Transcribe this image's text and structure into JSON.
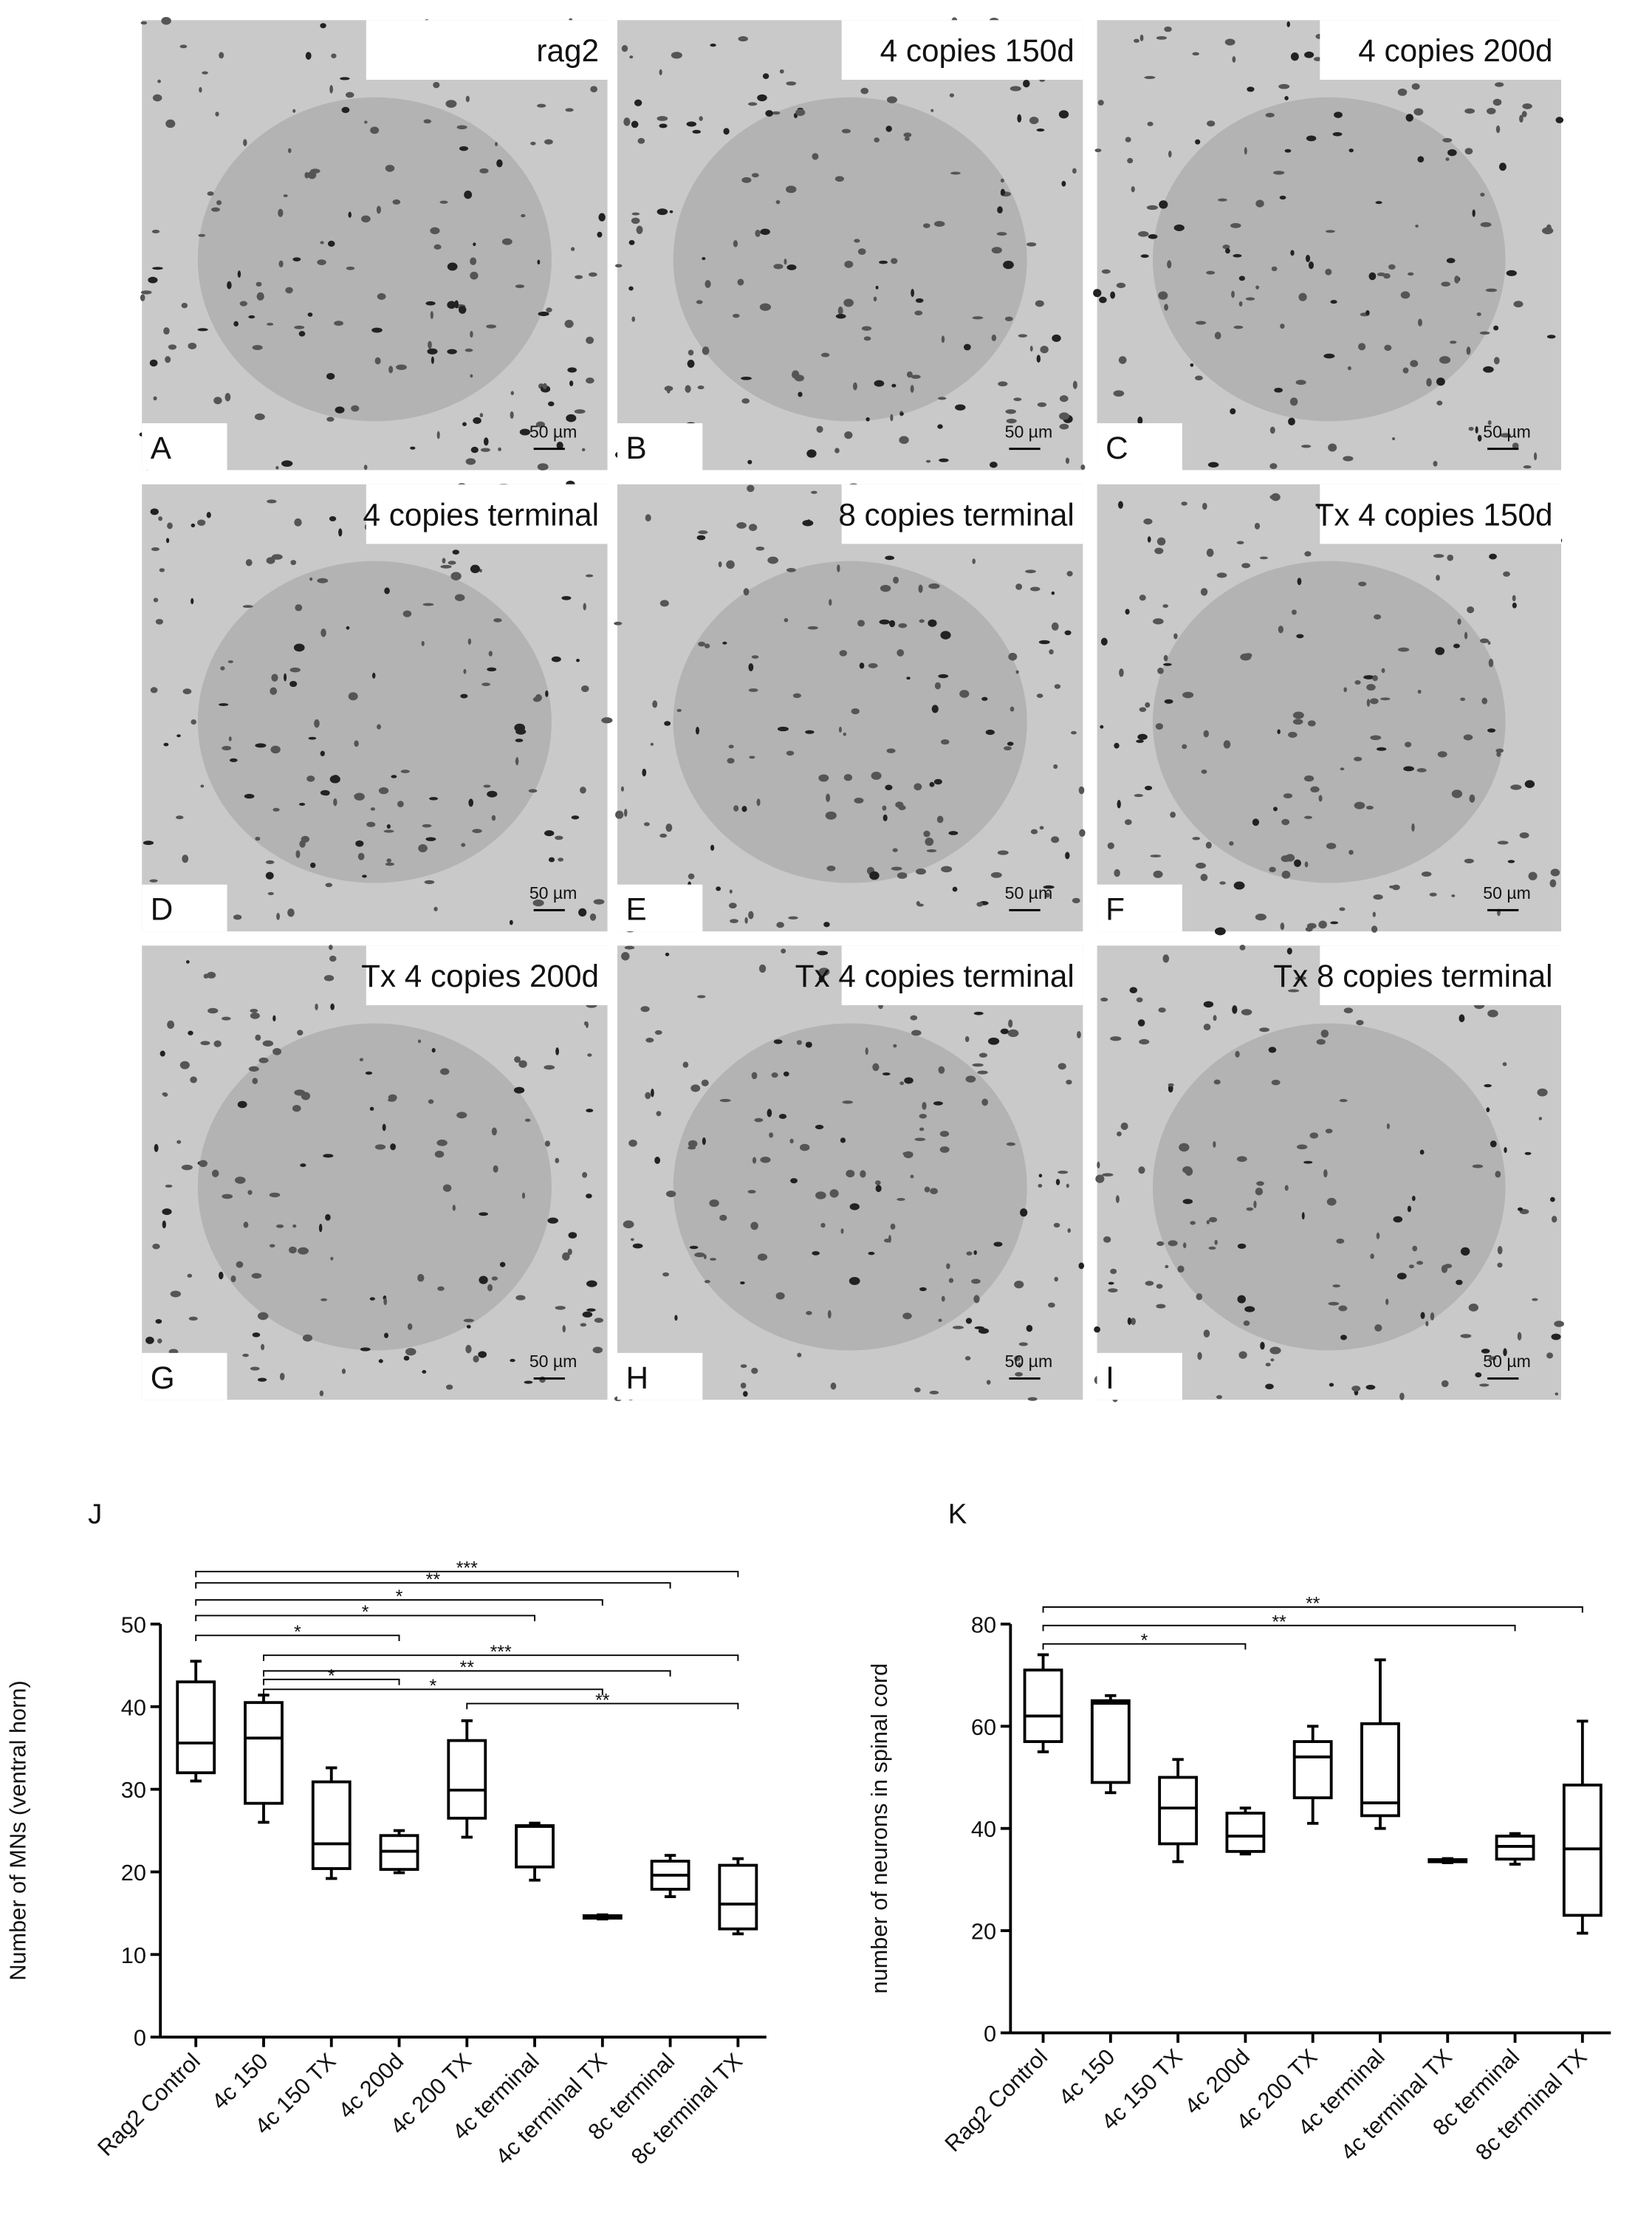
{
  "micrographs": [
    {
      "label": "rag2",
      "letter": "A",
      "scale": "50 µm"
    },
    {
      "label": "4 copies 150d",
      "letter": "B",
      "scale": "50 µm"
    },
    {
      "label": "4 copies 200d",
      "letter": "C",
      "scale": "50 µm"
    },
    {
      "label": "4 copies terminal",
      "letter": "D",
      "scale": "50 µm"
    },
    {
      "label": "8 copies terminal",
      "letter": "E",
      "scale": "50 µm"
    },
    {
      "label": "Tx 4 copies 150d",
      "letter": "F",
      "scale": "50 µm"
    },
    {
      "label": "Tx 4 copies 200d",
      "letter": "G",
      "scale": "50 µm"
    },
    {
      "label": "Tx 4 copies terminal",
      "letter": "H",
      "scale": "50 µm"
    },
    {
      "label": "Tx 8 copies terminal",
      "letter": "I",
      "scale": "50 µm"
    }
  ],
  "chart_data": [
    {
      "type": "box",
      "panel": "J",
      "y_label": "Number of MNs (ventral horn)",
      "categories": [
        "Rag2 Control",
        "4c 150",
        "4c 150 TX",
        "4c 200d",
        "4c 200 TX",
        "4c terminal",
        "4c terminal TX",
        "8c terminal",
        "8c terminal TX"
      ],
      "boxes": [
        {
          "min": 31,
          "q1": 32,
          "median": 35.6,
          "q3": 43,
          "max": 45.5
        },
        {
          "min": 26,
          "q1": 28.3,
          "median": 36.2,
          "q3": 40.5,
          "max": 41.4
        },
        {
          "min": 19.2,
          "q1": 20.4,
          "median": 23.4,
          "q3": 30.9,
          "max": 32.6
        },
        {
          "min": 19.9,
          "q1": 20.3,
          "median": 22.5,
          "q3": 24.4,
          "max": 25
        },
        {
          "min": 24.2,
          "q1": 26.5,
          "median": 29.9,
          "q3": 35.9,
          "max": 38.3
        },
        {
          "min": 19,
          "q1": 20.6,
          "median": 25.5,
          "q3": 25.6,
          "max": 25.9
        },
        {
          "min": 14.3,
          "q1": 14.4,
          "median": 14.5,
          "q3": 14.7,
          "max": 14.8
        },
        {
          "min": 17,
          "q1": 17.9,
          "median": 19.6,
          "q3": 21.3,
          "max": 22
        },
        {
          "min": 12.5,
          "q1": 13.1,
          "median": 16.1,
          "q3": 20.8,
          "max": 21.6
        }
      ],
      "ylim": [
        0,
        50
      ],
      "yticks": [
        0,
        10,
        20,
        30,
        40,
        50
      ],
      "color": "#000000",
      "comparisons": [
        {
          "from": "Rag2 Control",
          "to": "8c terminal TX",
          "label": "***"
        },
        {
          "from": "Rag2 Control",
          "to": "8c terminal",
          "label": "**"
        },
        {
          "from": "Rag2 Control",
          "to": "4c terminal TX",
          "label": "*"
        },
        {
          "from": "Rag2 Control",
          "to": "4c terminal",
          "label": "*"
        },
        {
          "from": "Rag2 Control",
          "to": "4c 200d",
          "label": "*"
        },
        {
          "from": "4c 150",
          "to": "8c terminal TX",
          "label": "***"
        },
        {
          "from": "4c 150",
          "to": "8c terminal",
          "label": "**"
        },
        {
          "from": "4c 150",
          "to": "4c 200d",
          "label": "*"
        },
        {
          "from": "4c 150",
          "to": "4c terminal TX",
          "label": "*"
        },
        {
          "from": "4c 200 TX",
          "to": "8c terminal TX",
          "label": "**"
        }
      ]
    },
    {
      "type": "box",
      "panel": "K",
      "y_label": "number of neurons in spinal cord",
      "categories": [
        "Rag2 Control",
        "4c 150",
        "4c 150 TX",
        "4c 200d",
        "4c 200 TX",
        "4c terminal",
        "4c terminal TX",
        "8c terminal",
        "8c terminal TX"
      ],
      "boxes": [
        {
          "min": 55,
          "q1": 57,
          "median": 62,
          "q3": 71,
          "max": 74
        },
        {
          "min": 47,
          "q1": 49,
          "median": 64.5,
          "q3": 65,
          "max": 66
        },
        {
          "min": 33.5,
          "q1": 37,
          "median": 44,
          "q3": 50,
          "max": 53.5
        },
        {
          "min": 35,
          "q1": 35.5,
          "median": 38.5,
          "q3": 43,
          "max": 44
        },
        {
          "min": 41,
          "q1": 46,
          "median": 54,
          "q3": 57,
          "max": 60
        },
        {
          "min": 40,
          "q1": 42.5,
          "median": 45,
          "q3": 60.5,
          "max": 73
        },
        {
          "min": 33.3,
          "q1": 33.5,
          "median": 33.7,
          "q3": 33.9,
          "max": 34.1
        },
        {
          "min": 33,
          "q1": 34,
          "median": 36.5,
          "q3": 38.5,
          "max": 39
        },
        {
          "min": 19.5,
          "q1": 23,
          "median": 36,
          "q3": 48.5,
          "max": 61
        }
      ],
      "ylim": [
        0,
        80
      ],
      "yticks": [
        0,
        20,
        40,
        60,
        80
      ],
      "color": "#000000",
      "comparisons": [
        {
          "from": "Rag2 Control",
          "to": "8c terminal TX",
          "label": "**"
        },
        {
          "from": "Rag2 Control",
          "to": "8c terminal",
          "label": "**"
        },
        {
          "from": "Rag2 Control",
          "to": "4c 200d",
          "label": "*"
        }
      ]
    }
  ]
}
